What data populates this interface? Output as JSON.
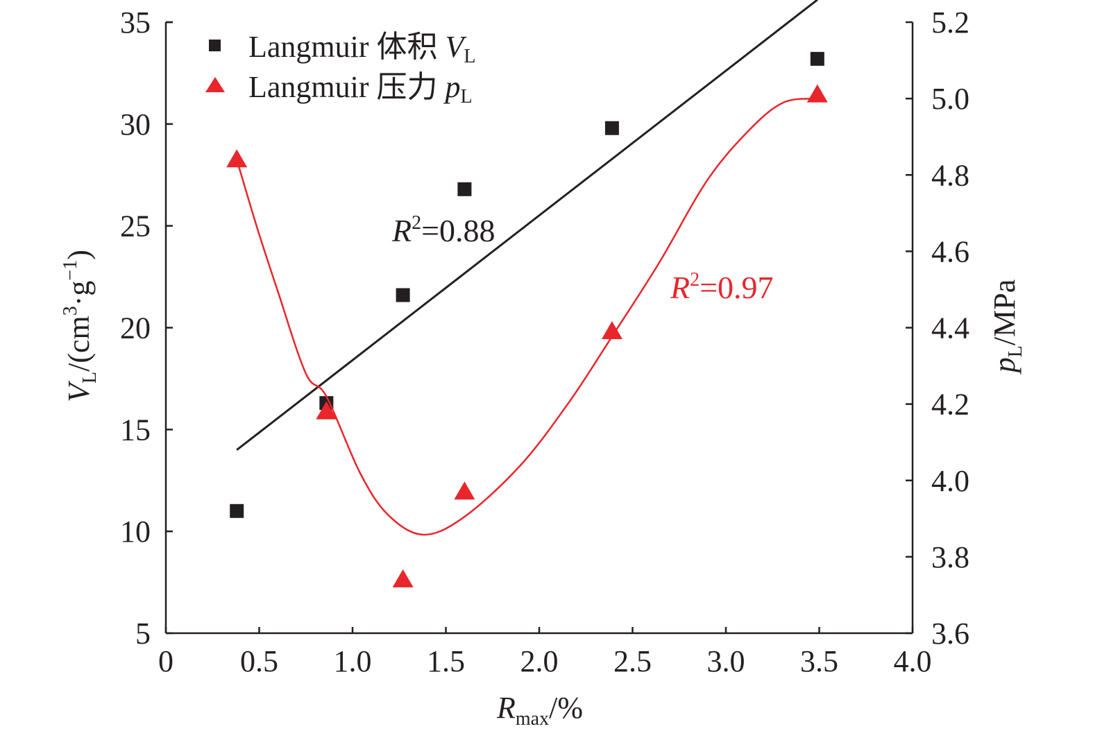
{
  "chart_data": {
    "type": "scatter",
    "title": "",
    "xlabel": {
      "main": "R",
      "sub": "max",
      "unit": "/%"
    },
    "ylabel_left": {
      "main": "V",
      "sub": "L",
      "unit": "/(cm",
      "sup1": "3",
      "mid": "·g",
      "sup2": "−1",
      "close": ")"
    },
    "ylabel_right": {
      "main": "p",
      "sub": "L",
      "unit": "/MPa"
    },
    "xlim": [
      0,
      4.0
    ],
    "ylim_left": [
      5,
      35
    ],
    "ylim_right": [
      3.6,
      5.2
    ],
    "xticks": [
      0,
      0.5,
      1.0,
      1.5,
      2.0,
      2.5,
      3.0,
      3.5,
      4.0
    ],
    "xtick_labels": [
      "0",
      "0.5",
      "1.0",
      "1.5",
      "2.0",
      "2.5",
      "3.0",
      "3.5",
      "4.0"
    ],
    "yticks_left": [
      5,
      10,
      15,
      20,
      25,
      30,
      35
    ],
    "ytick_labels_left": [
      "5",
      "10",
      "15",
      "20",
      "25",
      "30",
      "35"
    ],
    "yticks_right": [
      3.6,
      3.8,
      4.0,
      4.2,
      4.4,
      4.6,
      4.8,
      5.0,
      5.2
    ],
    "ytick_labels_right": [
      "3.6",
      "3.8",
      "4.0",
      "4.2",
      "4.4",
      "4.6",
      "4.8",
      "5.0",
      "5.2"
    ],
    "grid": false,
    "legend_position": "top-left",
    "series": [
      {
        "name": "Langmuir 体积 V_L",
        "legend_text": "Langmuir 体积 ",
        "legend_var": "V",
        "legend_sub": "L",
        "axis": "left",
        "marker": "square",
        "color": "#231f20",
        "x": [
          0.38,
          0.86,
          1.27,
          1.6,
          2.39,
          3.49
        ],
        "y": [
          11.0,
          16.3,
          21.6,
          26.8,
          29.8,
          33.2
        ],
        "fit": {
          "type": "linear",
          "x": [
            0.38,
            3.49
          ],
          "y": [
            14.0,
            36.1
          ],
          "r2_label": "R",
          "r2_text": "=0.88",
          "r2_sup": "2",
          "color": "#231f20"
        }
      },
      {
        "name": "Langmuir 压力 p_L",
        "legend_text": "Langmuir 压力 ",
        "legend_var": "p",
        "legend_sub": "L",
        "axis": "right",
        "marker": "triangle",
        "color": "#e8262b",
        "x": [
          0.38,
          0.86,
          1.27,
          1.6,
          2.39,
          3.49
        ],
        "y": [
          4.84,
          4.18,
          3.74,
          3.97,
          4.39,
          5.01
        ],
        "fit": {
          "type": "polynomial",
          "x": [
            0.38,
            0.49,
            0.6,
            0.75,
            0.86,
            1.04,
            1.19,
            1.38,
            1.6,
            1.9,
            2.16,
            2.39,
            2.64,
            2.9,
            3.13,
            3.31,
            3.49
          ],
          "y": [
            4.84,
            4.66,
            4.495,
            4.28,
            4.22,
            4.02,
            3.91,
            3.858,
            3.905,
            4.04,
            4.205,
            4.377,
            4.568,
            4.786,
            4.92,
            4.99,
            5.0
          ],
          "r2_label": "R",
          "r2_text": "=0.97",
          "r2_sup": "2",
          "color": "#e8262b"
        }
      }
    ]
  }
}
